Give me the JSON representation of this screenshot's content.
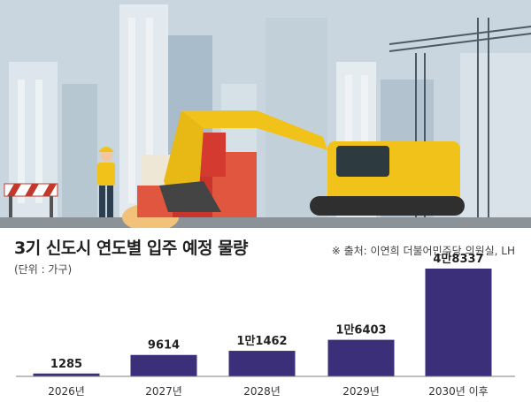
{
  "header": {
    "title": "3기 신도시 연도별 입주 예정 물량",
    "unit": "(단위 : 가구)",
    "source": "※ 출처: 이연희 더불어민주당 의원실, LH"
  },
  "colors": {
    "bar": "#3a2f78",
    "sky": "#c5d3dc",
    "ground": "#8c9398",
    "excavator": "#f1c31a",
    "block_red": "#d9302b"
  },
  "chart_data": {
    "type": "bar",
    "title": "3기 신도시 연도별 입주 예정 물량",
    "unit": "(단위 : 가구)",
    "categories": [
      "2026년",
      "2027년",
      "2028년",
      "2029년",
      "2030년 이후"
    ],
    "values": [
      1285,
      9614,
      11462,
      16403,
      48337
    ],
    "value_labels": [
      "1285",
      "9614",
      "1만1462",
      "1만6403",
      "4만8337"
    ],
    "ylim": [
      0,
      48337
    ],
    "grid": false,
    "legend": "none"
  }
}
